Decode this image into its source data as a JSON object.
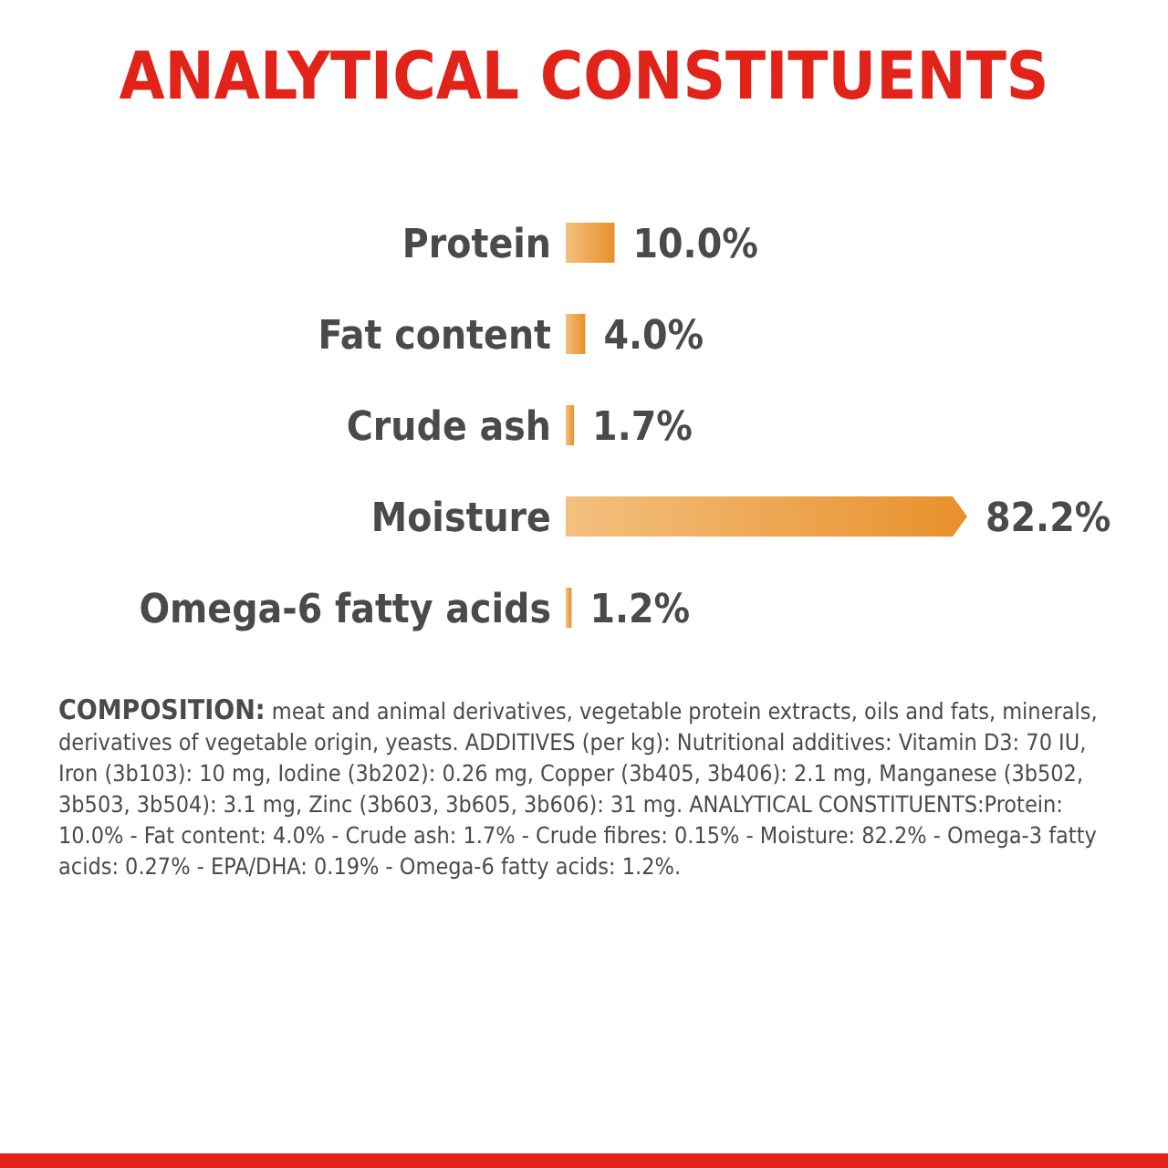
{
  "chart_data": {
    "type": "bar",
    "orientation": "horizontal",
    "title": "ANALYTICAL CONSTITUENTS",
    "categories": [
      "Protein",
      "Fat content",
      "Crude ash",
      "Moisture",
      "Omega-6 fatty acids"
    ],
    "values": [
      10.0,
      4.0,
      1.7,
      82.2,
      1.2
    ],
    "value_labels": [
      "10.0%",
      "4.0%",
      "1.7%",
      "82.2%",
      "1.2%"
    ],
    "color": "#e8902a",
    "annotations": [
      "COMPOSITION: meat and animal derivatives, vegetable protein extracts, oils and fats, minerals, derivatives of vegetable origin, yeasts. ADDITIVES (per kg): Nutritional additives: Vitamin D3: 70 IU, Iron (3b103): 10 mg, Iodine (3b202): 0.26 mg, Copper (3b405, 3b406): 2.1 mg, Manganese (3b502, 3b503, 3b504): 3.1 mg, Zinc (3b603, 3b605, 3b606): 31 mg. ANALYTICAL CONSTITUENTS:Protein: 10.0% - Fat content: 4.0% - Crude ash: 1.7% - Crude fibres: 0.15% - Moisture: 82.2% - Omega-3 fatty acids: 0.27% - EPA/DHA: 0.19% - Omega-6 fatty acids: 1.2%."
    ]
  }
}
